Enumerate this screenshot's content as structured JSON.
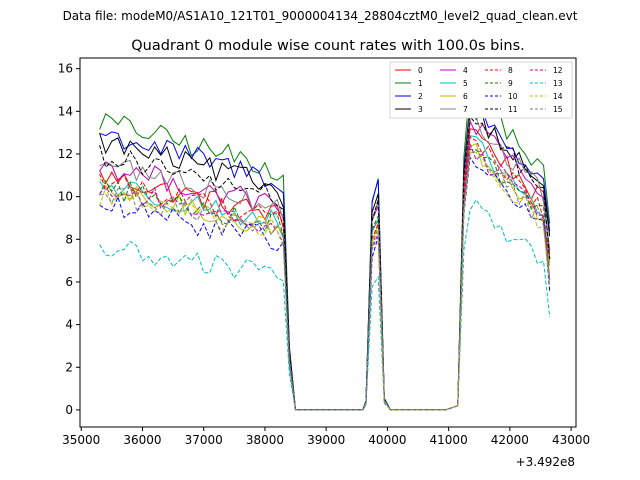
{
  "suptitle": "Data file: modeM0/AS1A10_121T01_9000004134_28804cztM0_level2_quad_clean.evt",
  "chart_data": {
    "type": "line",
    "title": "Quadrant 0 module wise count rates with 100.0s bins.",
    "xlabel": "",
    "ylabel": "",
    "x_offset_label": "+3.492e8",
    "xlim": [
      34980,
      43080
    ],
    "ylim": [
      -0.8,
      16.5
    ],
    "xticks": [
      35000,
      36000,
      37000,
      38000,
      39000,
      40000,
      41000,
      42000,
      43000
    ],
    "yticks": [
      0,
      2,
      4,
      6,
      8,
      10,
      12,
      14,
      16
    ],
    "legend_loc": "top-right",
    "segments": [
      {
        "start": 35300,
        "step": 100,
        "n": 32
      },
      {
        "start": 38500,
        "step": 100,
        "n": 12
      },
      {
        "start": 39650,
        "step": 100,
        "n": 4
      },
      {
        "start": 40050,
        "step": 100,
        "n": 10
      },
      {
        "start": 41150,
        "step": 100,
        "n": 16
      }
    ],
    "series": [
      {
        "name": "0",
        "color": "#ff0000",
        "dashed": false,
        "base": 11.0,
        "peak1": 9.0,
        "peak2": 13.3
      },
      {
        "name": "1",
        "color": "#008000",
        "dashed": false,
        "base": 13.6,
        "peak1": 10.8,
        "peak2": 15.2
      },
      {
        "name": "2",
        "color": "#0000ff",
        "dashed": false,
        "base": 13.0,
        "peak1": 10.6,
        "peak2": 14.5
      },
      {
        "name": "3",
        "color": "#000000",
        "dashed": false,
        "base": 12.6,
        "peak1": 10.4,
        "peak2": 14.2
      },
      {
        "name": "4",
        "color": "#bf00bf",
        "dashed": false,
        "base": 11.5,
        "peak1": 9.7,
        "peak2": 13.6
      },
      {
        "name": "5",
        "color": "#00bfbf",
        "dashed": false,
        "base": 10.6,
        "peak1": 8.9,
        "peak2": 12.6
      },
      {
        "name": "6",
        "color": "#bfbf00",
        "dashed": false,
        "base": 10.3,
        "peak1": 8.6,
        "peak2": 12.4
      },
      {
        "name": "7",
        "color": "#808080",
        "dashed": false,
        "base": 11.6,
        "peak1": 9.5,
        "peak2": 13.8
      },
      {
        "name": "8",
        "color": "#ff0000",
        "dashed": true,
        "base": 10.8,
        "peak1": 8.9,
        "peak2": 12.8
      },
      {
        "name": "9",
        "color": "#008000",
        "dashed": true,
        "base": 10.5,
        "peak1": 9.1,
        "peak2": 12.5
      },
      {
        "name": "10",
        "color": "#0000ff",
        "dashed": true,
        "base": 9.6,
        "peak1": 8.0,
        "peak2": 11.8
      },
      {
        "name": "11",
        "color": "#000000",
        "dashed": true,
        "base": 12.0,
        "peak1": 9.6,
        "peak2": 14.0
      },
      {
        "name": "12",
        "color": "#bf00bf",
        "dashed": true,
        "base": 10.4,
        "peak1": 8.5,
        "peak2": 12.4
      },
      {
        "name": "13",
        "color": "#00bfbf",
        "dashed": true,
        "base": 7.6,
        "peak1": 6.3,
        "peak2": 9.6
      },
      {
        "name": "14",
        "color": "#bfbf00",
        "dashed": true,
        "base": 10.1,
        "peak1": 8.3,
        "peak2": 12.0
      },
      {
        "name": "15",
        "color": "#808080",
        "dashed": true,
        "base": 10.2,
        "peak1": 8.4,
        "peak2": 12.2
      }
    ]
  }
}
